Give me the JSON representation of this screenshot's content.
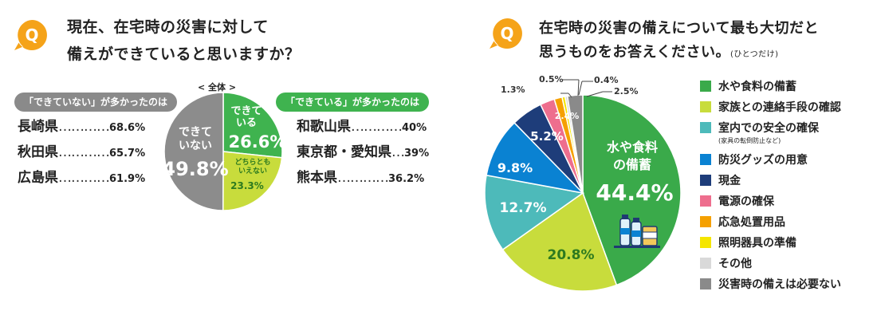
{
  "left": {
    "q_letter": "Q",
    "title_line1": "現在、在宅時の災害に対して",
    "title_line2": "備えができていると思いますか？",
    "overall_label": "< 全体 >",
    "not_prepared_header": "「できていない」が多かったのは",
    "not_prepared_rows": [
      {
        "name": "長崎県",
        "dots": "…………",
        "value": "68.6%"
      },
      {
        "name": "秋田県",
        "dots": "…………",
        "value": "65.7%"
      },
      {
        "name": "広島県",
        "dots": "…………",
        "value": "61.9%"
      }
    ],
    "prepared_header": "「できている」が多かったのは",
    "prepared_rows": [
      {
        "name": "和歌山県",
        "dots": "…………",
        "value": "40%"
      },
      {
        "name": "東京都・愛知県",
        "dots": "…",
        "value": "39%"
      },
      {
        "name": "熊本県",
        "dots": "…………",
        "value": "36.2%"
      }
    ]
  },
  "right": {
    "q_letter": "Q",
    "title_line1": "在宅時の災害の備えについて最も大切だと",
    "title_line2": "思うものをお答えください。",
    "title_note": "(ひとつだけ)"
  },
  "colors": {
    "q_orange": "#f5a319",
    "gray_slice": "#8c8c8c",
    "green_slice": "#3fb34f",
    "lime_slice": "#c8dc3c"
  },
  "chart_data": [
    {
      "type": "pie",
      "title": "現在、在宅時の災害に対して備えができていると思いますか？",
      "slices": [
        {
          "label": "できている",
          "value": 26.6,
          "value_text": "26.6%",
          "color": "#3fb34f"
        },
        {
          "label": "どちらともいえない",
          "value": 23.3,
          "value_text": "23.3%",
          "color": "#c8dc3c"
        },
        {
          "label": "できていない",
          "value": 49.8,
          "value_text": "49.8%",
          "color": "#8c8c8c"
        }
      ]
    },
    {
      "type": "pie",
      "title": "在宅時の災害の備えについて最も大切だと思うものをお答えください。(ひとつだけ)",
      "slices": [
        {
          "label": "水や食料の備蓄",
          "value": 44.4,
          "value_text": "44.4%",
          "color": "#3aaa4a"
        },
        {
          "label": "家族との連絡手段の確認",
          "value": 20.8,
          "value_text": "20.8%",
          "color": "#c8dc3c"
        },
        {
          "label": "室内での安全の確保",
          "sublabel": "(家具の転倒防止など)",
          "value": 12.7,
          "value_text": "12.7%",
          "color": "#4dbaba"
        },
        {
          "label": "防災グッズの用意",
          "value": 9.8,
          "value_text": "9.8%",
          "color": "#0a82d2"
        },
        {
          "label": "現金",
          "value": 5.2,
          "value_text": "5.2%",
          "color": "#1e3d7a"
        },
        {
          "label": "電源の確保",
          "value": 2.4,
          "value_text": "2.4%",
          "color": "#ee6e8e"
        },
        {
          "label": "応急処置用品",
          "value": 1.3,
          "value_text": "1.3%",
          "color": "#f5a000"
        },
        {
          "label": "照明器具の準備",
          "value": 0.5,
          "value_text": "0.5%",
          "color": "#f5e600"
        },
        {
          "label": "その他",
          "value": 0.4,
          "value_text": "0.4%",
          "color": "#d9d9d9"
        },
        {
          "label": "災害時の備えは必要ない",
          "value": 2.5,
          "value_text": "2.5%",
          "color": "#8a8a8a"
        }
      ]
    }
  ]
}
